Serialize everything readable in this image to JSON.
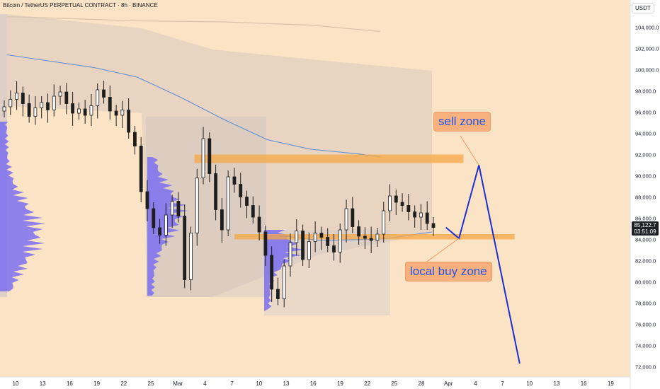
{
  "header": {
    "title": "Bitcoin / TetherUS PERPETUAL CONTRACT · 8h · BINANCE"
  },
  "price_axis": {
    "currency": "USDT",
    "current_price": "85,122.7",
    "countdown": "03:51:09"
  },
  "annotations": {
    "sell_zone": "sell zone",
    "buy_zone": "local buy zone"
  },
  "colors": {
    "background": "#fbe3c5",
    "zone_orange": "#f5a845",
    "projection_line": "#1c2fd0",
    "label_text": "#2455e8",
    "volume_profile": "#7b6ff0",
    "candle": "#1e1e1e",
    "ma_line": "#5b8fd8"
  },
  "chart_data": {
    "type": "candlestick",
    "title": "Bitcoin / TetherUS PERPETUAL CONTRACT · 8h · BINANCE",
    "ylim": [
      71000,
      106500
    ],
    "y_ticks": [
      72000,
      74000,
      76000,
      78000,
      80000,
      82000,
      84000,
      86000,
      88000,
      90000,
      92000,
      94000,
      96000,
      98000,
      100000,
      102000,
      104000
    ],
    "y_tick_labels": [
      "72,000.0",
      "74,000.0",
      "76,000.0",
      "78,000.0",
      "80,000.0",
      "82,000.0",
      "84,000.0",
      "86,000.0",
      "88,000.0",
      "90,000.0",
      "92,000.0",
      "94,000.0",
      "96,000.0",
      "98,000.0",
      "100,000.0",
      "102,000.0",
      "104,000.0"
    ],
    "x_days": [
      0,
      3,
      6,
      9,
      12,
      15,
      18,
      19,
      22,
      25,
      28,
      31,
      34,
      37,
      40,
      43,
      46,
      49,
      52,
      55,
      58,
      61,
      62,
      65,
      68,
      71,
      74
    ],
    "x_tick_labels": [
      "10",
      "13",
      "16",
      "19",
      "22",
      "25",
      "Mar",
      "4",
      "7",
      "10",
      "13",
      "16",
      "19",
      "22",
      "25",
      "28",
      "Apr",
      "4",
      "7",
      "10",
      "13",
      "16",
      "19"
    ],
    "x_tick_days": [
      0,
      3,
      6,
      9,
      12,
      15,
      18,
      21,
      24,
      27,
      30,
      33,
      36,
      39,
      42,
      45,
      49,
      52,
      55,
      58,
      61,
      64,
      67
    ],
    "candles_close": [
      96500,
      97200,
      97800,
      96800,
      95600,
      96400,
      96900,
      96200,
      97500,
      97900,
      96800,
      95900,
      96300,
      95700,
      96600,
      98100,
      97400,
      96100,
      95700,
      96200,
      94100,
      92800,
      88500,
      86900,
      85100,
      84400,
      86300,
      87600,
      86200,
      80200,
      84600,
      89800,
      93500,
      90200,
      86800,
      84900,
      89900,
      89200,
      88000,
      87200,
      86100,
      84700,
      82500,
      79300,
      78400,
      81500,
      83700,
      84800,
      82100,
      83800,
      84600,
      84200,
      83400,
      82800,
      84900,
      86900,
      85200,
      84300,
      84100,
      83900,
      84500,
      86700,
      88100,
      87500,
      87200,
      86600,
      86100,
      86500,
      85500,
      85122.7
    ],
    "zones": [
      {
        "label": "sell zone",
        "low": 91200,
        "high": 92000,
        "x_start": 21.6,
        "x_end": 52.6
      },
      {
        "label": "local buy zone",
        "low": 84000,
        "high": 84500,
        "x_start": 26.2,
        "x_end": 58.5
      }
    ],
    "projection_path": [
      [
        43.0,
        85122.7
      ],
      [
        44.5,
        84100
      ],
      [
        46.8,
        91000
      ],
      [
        51.5,
        72300
      ]
    ],
    "upper_band": [
      [
        0,
        105000
      ],
      [
        15,
        104600
      ],
      [
        25,
        104500
      ],
      [
        35,
        104200
      ],
      [
        43,
        103600
      ]
    ],
    "ma_line": [
      [
        0,
        101400
      ],
      [
        5,
        100800
      ],
      [
        10,
        100200
      ],
      [
        15,
        99300
      ],
      [
        20,
        97400
      ],
      [
        25,
        95300
      ],
      [
        30,
        93400
      ],
      [
        35,
        92500
      ],
      [
        40,
        92100
      ],
      [
        43,
        91800
      ]
    ]
  }
}
